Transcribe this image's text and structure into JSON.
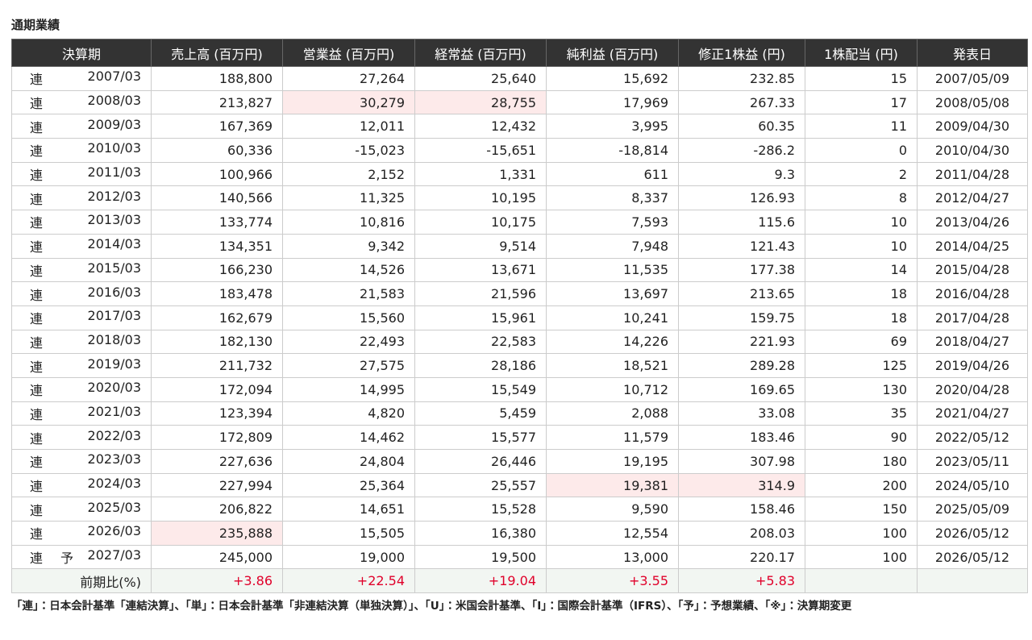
{
  "title": "通期業績",
  "table": {
    "header": [
      "決算期",
      "売上高 (百万円)",
      "営業益 (百万円)",
      "経常益 (百万円)",
      "純利益 (百万円)",
      "修正1株益 (円)",
      "1株配当 (円)",
      "発表日"
    ],
    "rows": [
      {
        "kind": "連",
        "period": "2007/03",
        "values": [
          "188,800",
          "27,264",
          "25,640",
          "15,692",
          "232.85",
          "15",
          "2007/05/09"
        ]
      },
      {
        "kind": "連",
        "period": "2008/03",
        "values": [
          "213,827",
          "30,279",
          "28,755",
          "17,969",
          "267.33",
          "17",
          "2008/05/08"
        ]
      },
      {
        "kind": "連",
        "period": "2009/03",
        "values": [
          "167,369",
          "12,011",
          "12,432",
          "3,995",
          "60.35",
          "11",
          "2009/04/30"
        ]
      },
      {
        "kind": "連",
        "period": "2010/03",
        "values": [
          "60,336",
          "-15,023",
          "-15,651",
          "-18,814",
          "-286.2",
          "0",
          "2010/04/30"
        ]
      },
      {
        "kind": "連",
        "period": "2011/03",
        "values": [
          "100,966",
          "2,152",
          "1,331",
          "611",
          "9.3",
          "2",
          "2011/04/28"
        ]
      },
      {
        "kind": "連",
        "period": "2012/03",
        "values": [
          "140,566",
          "11,325",
          "10,195",
          "8,337",
          "126.93",
          "8",
          "2012/04/27"
        ]
      },
      {
        "kind": "連",
        "period": "2013/03",
        "values": [
          "133,774",
          "10,816",
          "10,175",
          "7,593",
          "115.6",
          "10",
          "2013/04/26"
        ]
      },
      {
        "kind": "連",
        "period": "2014/03",
        "values": [
          "134,351",
          "9,342",
          "9,514",
          "7,948",
          "121.43",
          "10",
          "2014/04/25"
        ]
      },
      {
        "kind": "連",
        "period": "2015/03",
        "values": [
          "166,230",
          "14,526",
          "13,671",
          "11,535",
          "177.38",
          "14",
          "2015/04/28"
        ]
      },
      {
        "kind": "連",
        "period": "2016/03",
        "values": [
          "183,478",
          "21,583",
          "21,596",
          "13,697",
          "213.65",
          "18",
          "2016/04/28"
        ]
      },
      {
        "kind": "連",
        "period": "2017/03",
        "values": [
          "162,679",
          "15,560",
          "15,961",
          "10,241",
          "159.75",
          "18",
          "2017/04/28"
        ]
      },
      {
        "kind": "連",
        "period": "2018/03",
        "values": [
          "182,130",
          "22,493",
          "22,583",
          "14,226",
          "221.93",
          "69",
          "2018/04/27"
        ]
      },
      {
        "kind": "連",
        "period": "2019/03",
        "values": [
          "211,732",
          "27,575",
          "28,186",
          "18,521",
          "289.28",
          "125",
          "2019/04/26"
        ]
      },
      {
        "kind": "連",
        "period": "2020/03",
        "values": [
          "172,094",
          "14,995",
          "15,549",
          "10,712",
          "169.65",
          "130",
          "2020/04/28"
        ]
      },
      {
        "kind": "連",
        "period": "2021/03",
        "values": [
          "123,394",
          "4,820",
          "5,459",
          "2,088",
          "33.08",
          "35",
          "2021/04/27"
        ]
      },
      {
        "kind": "連",
        "period": "2022/03",
        "values": [
          "172,809",
          "14,462",
          "15,577",
          "11,579",
          "183.46",
          "90",
          "2022/05/12"
        ]
      },
      {
        "kind": "連",
        "period": "2023/03",
        "values": [
          "227,636",
          "24,804",
          "26,446",
          "19,195",
          "307.98",
          "180",
          "2023/05/11"
        ]
      },
      {
        "kind": "連",
        "period": "2024/03",
        "values": [
          "227,994",
          "25,364",
          "25,557",
          "19,381",
          "314.9",
          "200",
          "2024/05/10"
        ]
      },
      {
        "kind": "連",
        "period": "2025/03",
        "values": [
          "206,822",
          "14,651",
          "15,528",
          "9,590",
          "158.46",
          "150",
          "2025/05/09"
        ]
      },
      {
        "kind": "連",
        "period": "2026/03",
        "values": [
          "235,888",
          "15,505",
          "16,380",
          "12,554",
          "208.03",
          "100",
          "2026/05/12"
        ]
      },
      {
        "kind": "連",
        "forecast": "予",
        "period": "2027/03",
        "values": [
          "245,000",
          "19,000",
          "19,500",
          "13,000",
          "220.17",
          "100",
          "2026/05/12"
        ]
      }
    ],
    "change": {
      "label": "前期比(%)",
      "values": [
        "+3.86",
        "+22.54",
        "+19.04",
        "+3.55",
        "+5.83"
      ]
    }
  },
  "note": "「連」：日本会計基準「連結決算」、「単」：日本会計基準「非連結決算（単独決算）」、「U」：米国会計基準、「I」：国際会計基準（IFRS）、「予」：予想業績、「※」：決算期変更"
}
